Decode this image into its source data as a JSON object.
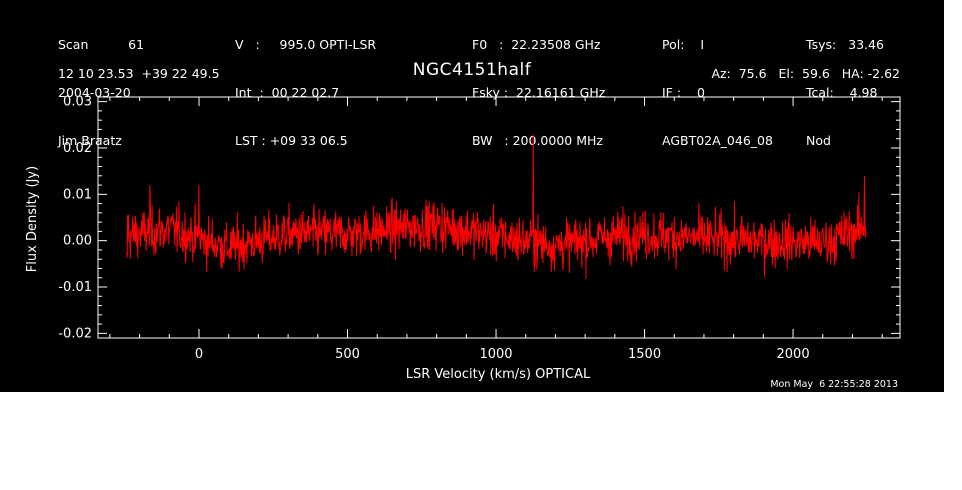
{
  "header": {
    "col1": [
      "Scan          61",
      "2004-03-20",
      "Jim Braatz"
    ],
    "col2": [
      "V   :     995.0 OPTI-LSR",
      "Int  :  00 22 02.7",
      "LST : +09 33 06.5"
    ],
    "col3": [
      "F0   :  22.23508 GHz",
      "Fsky :  22.16161 GHz",
      "BW   : 200.0000 MHz"
    ],
    "col4": [
      "Pol:    I",
      "IF :    0",
      "AGBT02A_046_08"
    ],
    "col5": [
      "Tsys:   33.46",
      "Tcal:    4.98",
      "Nod"
    ],
    "coords": "12 10 23.53  +39 22 49.5",
    "angles": "Az:  75.6   El:  59.6   HA: -2.62",
    "timestamp": "Mon May  6 22:55:28 2013"
  },
  "colors": {
    "background": "#000000",
    "axes": "#ffffff",
    "series": "#ff0000"
  },
  "chart_data": {
    "type": "line",
    "title": "NGC4151half",
    "xlabel": "LSR Velocity (km/s) OPTICAL",
    "ylabel": "Flux Density (Jy)",
    "xlim": [
      -340,
      2360
    ],
    "ylim": [
      -0.021,
      0.031
    ],
    "xticks": [
      0,
      500,
      1000,
      1500,
      2000
    ],
    "xtick_labels": [
      "0",
      "500",
      "1000",
      "1500",
      "2000"
    ],
    "yticks": [
      -0.02,
      -0.01,
      0.0,
      0.01,
      0.02,
      0.03
    ],
    "ytick_labels": [
      "-0.02",
      "-0.01",
      "0.00",
      "0.01",
      "0.02",
      "0.03"
    ],
    "grid": false,
    "series": [
      {
        "x_start": -245,
        "x_end": 2245,
        "noise_rms": 0.0035,
        "baseline": [
          {
            "x": -245,
            "y": 0.001
          },
          {
            "x": -100,
            "y": 0.0025
          },
          {
            "x": 100,
            "y": -0.0015
          },
          {
            "x": 300,
            "y": 0.0015
          },
          {
            "x": 500,
            "y": 0.0015
          },
          {
            "x": 800,
            "y": 0.0035
          },
          {
            "x": 1000,
            "y": 0.001
          },
          {
            "x": 1200,
            "y": -0.001
          },
          {
            "x": 1450,
            "y": 0.0015
          },
          {
            "x": 1700,
            "y": 0.0005
          },
          {
            "x": 1900,
            "y": 0.0
          },
          {
            "x": 2100,
            "y": -0.0005
          },
          {
            "x": 2245,
            "y": 0.003
          }
        ],
        "spikes": [
          {
            "x": 1125,
            "y": 0.023
          },
          {
            "x": -165,
            "y": 0.012
          },
          {
            "x": 2240,
            "y": 0.014
          },
          {
            "x": 0,
            "y": 0.012
          }
        ]
      }
    ]
  }
}
